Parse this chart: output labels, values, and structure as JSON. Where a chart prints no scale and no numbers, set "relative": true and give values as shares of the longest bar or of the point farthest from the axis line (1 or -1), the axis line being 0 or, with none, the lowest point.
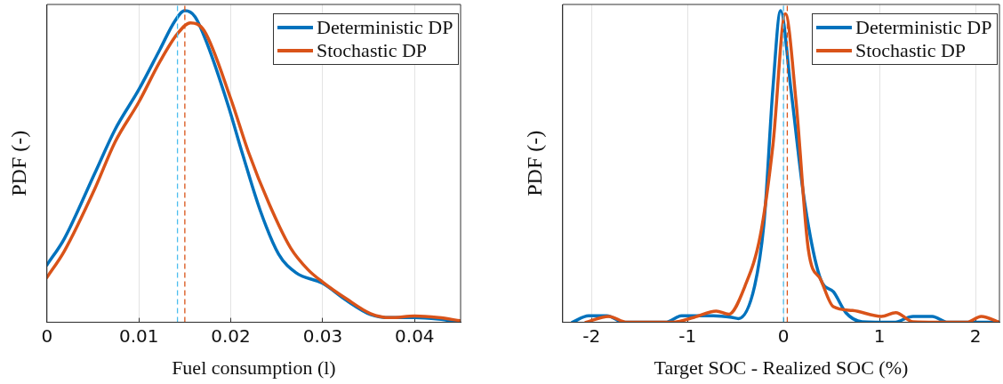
{
  "chart_data": [
    {
      "type": "line",
      "xlabel": "Fuel consumption (l)",
      "ylabel": "PDF (-)",
      "relative": true,
      "xlim": [
        0,
        0.045
      ],
      "xticks": [
        0,
        0.01,
        0.02,
        0.03,
        0.04
      ],
      "grid": "x",
      "legend": "top right",
      "tick_labels": "x",
      "marker": "none",
      "line_style": "solid",
      "series": [
        {
          "name": "Deterministic DP",
          "color": "#0072bd",
          "x": [
            0,
            0.0019,
            0.0052,
            0.0074,
            0.01,
            0.0123,
            0.0139,
            0.015,
            0.0161,
            0.0174,
            0.0197,
            0.0213,
            0.0232,
            0.0252,
            0.0271,
            0.03,
            0.0326,
            0.0352,
            0.0374,
            0.04,
            0.0426,
            0.045
          ],
          "values": [
            0.184,
            0.269,
            0.478,
            0.618,
            0.747,
            0.876,
            0.966,
            1,
            0.981,
            0.896,
            0.697,
            0.538,
            0.359,
            0.219,
            0.159,
            0.125,
            0.07,
            0.025,
            0.015,
            0.015,
            0.01,
            0
          ]
        },
        {
          "name": "Stochastic DP",
          "color": "#d95319",
          "x": [
            0,
            0.0019,
            0.0052,
            0.0074,
            0.01,
            0.0123,
            0.0142,
            0.0156,
            0.0171,
            0.02,
            0.0219,
            0.0242,
            0.0265,
            0.0284,
            0.03,
            0.0326,
            0.0352,
            0.0374,
            0.04,
            0.0426,
            0.045
          ],
          "values": [
            0.144,
            0.229,
            0.428,
            0.578,
            0.707,
            0.837,
            0.926,
            0.961,
            0.936,
            0.717,
            0.548,
            0.378,
            0.239,
            0.169,
            0.129,
            0.075,
            0.028,
            0.015,
            0.02,
            0.015,
            0.005
          ]
        }
      ],
      "ref_lines": [
        {
          "axis": "x",
          "value": 0.0142,
          "color": "#4dbeee",
          "line_style": "dashed"
        },
        {
          "axis": "x",
          "value": 0.015,
          "color": "#d95319",
          "line_style": "dashed"
        }
      ]
    },
    {
      "type": "line",
      "xlabel": "Target SOC - Realized SOC (%)",
      "ylabel": "PDF (-)",
      "relative": true,
      "xlim": [
        -2.3,
        2.25
      ],
      "xticks": [
        -2,
        -1,
        0,
        1,
        2
      ],
      "grid": "x",
      "legend": "top right",
      "tick_labels": "x",
      "marker": "none",
      "line_style": "solid",
      "series": [
        {
          "name": "Deterministic DP",
          "color": "#0072bd",
          "x": [
            -2.2,
            -2.03,
            -1.84,
            -1.66,
            -1.23,
            -1.06,
            -0.73,
            -0.54,
            -0.47,
            -0.3,
            -0.2,
            -0.11,
            -0.03,
            0.08,
            0.22,
            0.39,
            0.52,
            0.65,
            0.82,
            1.15,
            1.35,
            1.55,
            1.71,
            2.25
          ],
          "values": [
            0,
            0.021,
            0.021,
            0,
            0,
            0.021,
            0.021,
            0.016,
            0.012,
            0.117,
            0.328,
            0.75,
            1,
            0.741,
            0.386,
            0.136,
            0.098,
            0.031,
            0.002,
            0,
            0.019,
            0.019,
            0,
            0
          ]
        },
        {
          "name": "Stochastic DP",
          "color": "#d95319",
          "x": [
            -2.06,
            -1.82,
            -1.63,
            -1.16,
            -0.93,
            -0.7,
            -0.57,
            -0.4,
            -0.24,
            -0.11,
            0.02,
            0.13,
            0.26,
            0.39,
            0.52,
            0.72,
            1.02,
            1.17,
            1.35,
            1.91,
            2.06,
            2.25
          ],
          "values": [
            0,
            0.019,
            0,
            0,
            0.016,
            0.036,
            0.026,
            0.117,
            0.28,
            0.568,
            0.99,
            0.712,
            0.232,
            0.136,
            0.05,
            0.038,
            0.019,
            0.031,
            0.002,
            0,
            0.019,
            0
          ]
        }
      ],
      "ref_lines": [
        {
          "axis": "x",
          "value": 0,
          "color": "#4dbeee",
          "line_style": "dashed"
        },
        {
          "axis": "x",
          "value": 0.04,
          "color": "#d95319",
          "line_style": "dashed"
        }
      ]
    }
  ]
}
